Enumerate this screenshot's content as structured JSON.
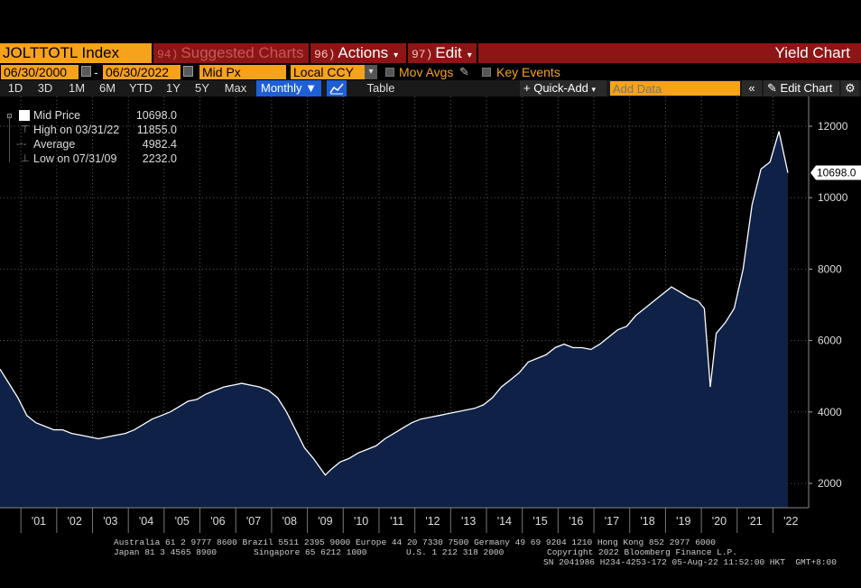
{
  "toolbar": {
    "ticker": "JOLTTOTL Index",
    "suggested": {
      "num": "94)",
      "label": "Suggested Charts"
    },
    "actions": {
      "num": "96)",
      "label": "Actions"
    },
    "edit": {
      "num": "97)",
      "label": "Edit"
    },
    "yield_chart": "Yield Chart"
  },
  "settings": {
    "start_date": "06/30/2000",
    "dash": "-",
    "end_date": "06/30/2022",
    "price_field": "Mid Px",
    "currency": "Local CCY",
    "mov_avgs": "Mov Avgs",
    "key_events": "Key Events"
  },
  "periods": [
    "1D",
    "3D",
    "1M",
    "6M",
    "YTD",
    "1Y",
    "5Y",
    "Max"
  ],
  "frequency": "Monthly",
  "table_label": "Table",
  "quick_add": "Quick-Add",
  "add_data_placeholder": "Add Data",
  "edit_chart": "Edit Chart",
  "legend": [
    {
      "label": "Mid Price",
      "value": "10698.0"
    },
    {
      "label": "High on 03/31/22",
      "value": "11855.0"
    },
    {
      "label": "Average",
      "value": "4982.4"
    },
    {
      "label": "Low on 07/31/09",
      "value": "2232.0"
    }
  ],
  "last_value_label": "10698.0",
  "footer": {
    "line1": "Australia 61 2 9777 8600 Brazil 5511 2395 9000 Europe 44 20 7330 7500 Germany 49 69 9204 1210 Hong Kong 852 2977 6000",
    "line2a": "Japan 81 3 4565 8900",
    "line2b": "Singapore 65 6212 1000",
    "line2c": "U.S. 1 212 318 2000",
    "line2d": "Copyright 2022 Bloomberg Finance L.P.",
    "line3": "SN 2041986 H234-4253-172 05-Aug-22 11:52:00 HKT  GMT+8:00"
  },
  "colors": {
    "accent_orange": "#f7a21b",
    "menu_red": "#8e1515",
    "area_fill": "#0f2146",
    "line": "#ffffff",
    "active_blue": "#1e5fd6"
  },
  "chart_data": {
    "type": "area",
    "x": [
      "2000-06",
      "2000-09",
      "2000-12",
      "2001-03",
      "2001-06",
      "2001-09",
      "2001-12",
      "2002-03",
      "2002-06",
      "2002-09",
      "2002-12",
      "2003-03",
      "2003-06",
      "2003-09",
      "2003-12",
      "2004-03",
      "2004-06",
      "2004-09",
      "2004-12",
      "2005-03",
      "2005-06",
      "2005-09",
      "2005-12",
      "2006-03",
      "2006-06",
      "2006-09",
      "2006-12",
      "2007-03",
      "2007-06",
      "2007-09",
      "2007-12",
      "2008-03",
      "2008-06",
      "2008-09",
      "2008-12",
      "2009-03",
      "2009-07",
      "2009-09",
      "2009-12",
      "2010-03",
      "2010-06",
      "2010-09",
      "2010-12",
      "2011-03",
      "2011-06",
      "2011-09",
      "2011-12",
      "2012-03",
      "2012-06",
      "2012-09",
      "2012-12",
      "2013-03",
      "2013-06",
      "2013-09",
      "2013-12",
      "2014-03",
      "2014-06",
      "2014-09",
      "2014-12",
      "2015-03",
      "2015-06",
      "2015-09",
      "2015-12",
      "2016-03",
      "2016-06",
      "2016-09",
      "2016-12",
      "2017-03",
      "2017-06",
      "2017-09",
      "2017-12",
      "2018-03",
      "2018-06",
      "2018-09",
      "2018-12",
      "2019-03",
      "2019-06",
      "2019-09",
      "2019-12",
      "2020-02",
      "2020-04",
      "2020-06",
      "2020-09",
      "2020-12",
      "2021-03",
      "2021-06",
      "2021-09",
      "2021-12",
      "2022-03",
      "2022-06"
    ],
    "values": [
      5200,
      4800,
      4400,
      3900,
      3700,
      3600,
      3500,
      3500,
      3400,
      3350,
      3300,
      3250,
      3300,
      3350,
      3400,
      3500,
      3650,
      3800,
      3900,
      4000,
      4150,
      4300,
      4350,
      4500,
      4600,
      4700,
      4750,
      4800,
      4750,
      4700,
      4600,
      4400,
      4000,
      3500,
      3000,
      2700,
      2232,
      2400,
      2600,
      2700,
      2850,
      2950,
      3050,
      3250,
      3400,
      3550,
      3700,
      3800,
      3850,
      3900,
      3950,
      4000,
      4050,
      4100,
      4200,
      4400,
      4700,
      4900,
      5100,
      5400,
      5500,
      5600,
      5800,
      5900,
      5800,
      5800,
      5750,
      5900,
      6100,
      6300,
      6400,
      6700,
      6900,
      7100,
      7300,
      7500,
      7350,
      7200,
      7100,
      6900,
      4700,
      6200,
      6500,
      6900,
      8000,
      9800,
      10800,
      11000,
      11855,
      10698
    ],
    "title": "",
    "xlabel": "",
    "ylabel": "",
    "ylim": [
      1400,
      12600
    ],
    "yticks": [
      2000,
      4000,
      6000,
      8000,
      10000,
      12000
    ],
    "xticks": [
      "'01",
      "'02",
      "'03",
      "'04",
      "'05",
      "'06",
      "'07",
      "'08",
      "'09",
      "'10",
      "'11",
      "'12",
      "'13",
      "'14",
      "'15",
      "'16",
      "'17",
      "'18",
      "'19",
      "'20",
      "'21",
      "'22"
    ],
    "grid": true,
    "legend_position": "top-left",
    "y_axis_side": "right"
  }
}
